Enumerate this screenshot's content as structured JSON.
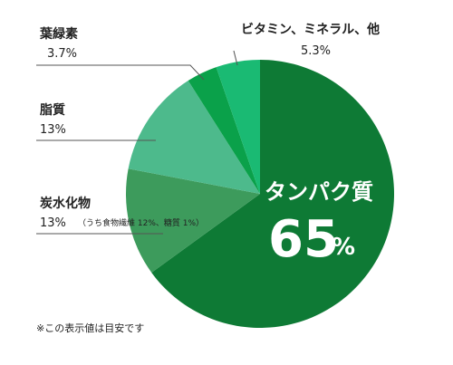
{
  "chart_data": {
    "type": "pie",
    "title": "",
    "start_angle_deg": 0,
    "direction": "clockwise",
    "slices": [
      {
        "name": "タンパク質",
        "value": 65,
        "value_label": "65",
        "unit": "%",
        "color": "#0e7a35"
      },
      {
        "name": "炭水化物",
        "value": 13,
        "value_label": "13%",
        "sub": "（うち食物繊維 12%、糖質 1%）",
        "color": "#3d9b5c"
      },
      {
        "name": "脂質",
        "value": 13,
        "value_label": "13%",
        "color": "#4dba8c"
      },
      {
        "name": "葉緑素",
        "value": 3.7,
        "value_label": "3.7%",
        "color": "#0aa14a"
      },
      {
        "name": "ビタミン、ミネラル、他",
        "value": 5.3,
        "value_label": "5.3%",
        "color": "#1aba73"
      }
    ]
  },
  "footnote": "※この表示値は目安です"
}
